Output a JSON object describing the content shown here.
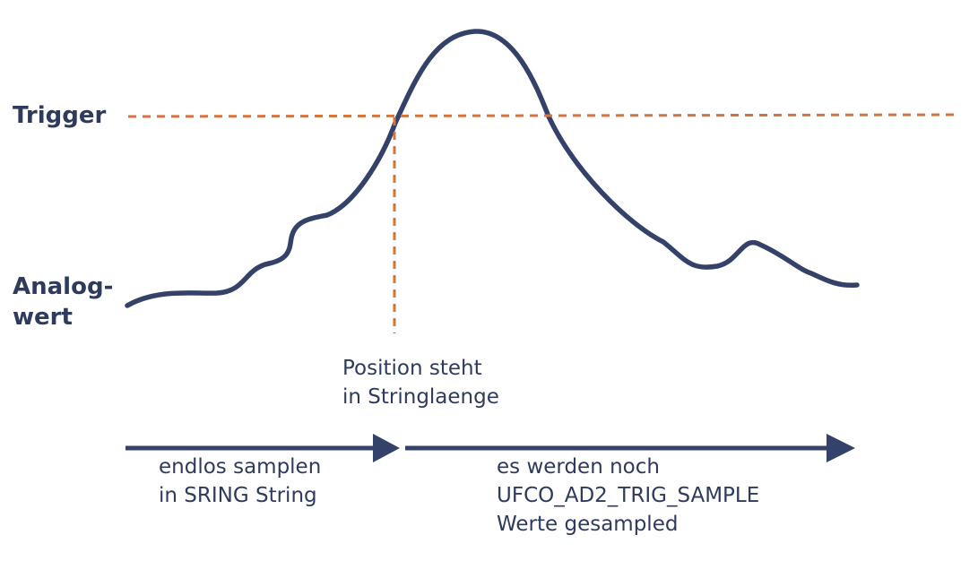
{
  "labels": {
    "trigger": "Trigger",
    "analog_line1": "Analog-",
    "analog_line2": "wert",
    "position_line1": "Position steht",
    "position_line2": "in Stringlaenge",
    "endless_line1": "endlos samplen",
    "endless_line2": "in SRING String",
    "remaining_line1": "es werden noch",
    "remaining_line2": "UFCO_AD2_TRIG_SAMPLE",
    "remaining_line3": "Werte gesampled"
  },
  "colors": {
    "curve": "#34426a",
    "trigger_line": "#d8743a",
    "arrow": "#34426a",
    "text": "#2f3b5c"
  },
  "icons": {
    "arrow_head": "arrow-right-icon"
  }
}
